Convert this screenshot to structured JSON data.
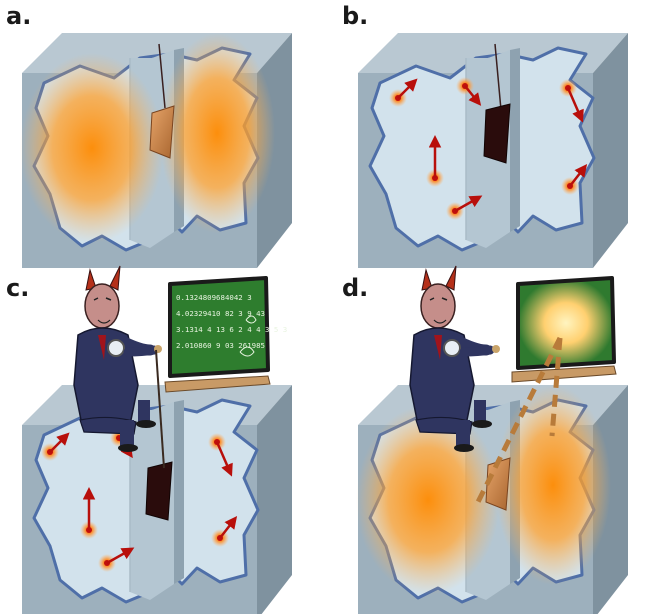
{
  "panels": [
    {
      "label": "a.",
      "content": "warm glow, shutter open"
    },
    {
      "label": "b.",
      "content": "particles, shutter closed"
    },
    {
      "label": "c.",
      "content": "demon measures particles"
    },
    {
      "label": "d.",
      "content": "demon erases board, heat released"
    }
  ],
  "blackboard": {
    "lines": [
      "0.1324809684042 3",
      "4.02329410 82 3 9 43",
      "3.1314 4 13 6 2 4 4 3 5 3",
      "2.010860 9 03 261985"
    ]
  },
  "colors": {
    "box_outer": "#9fb2bf",
    "box_inner": "#cfe0ea",
    "glow": "#ff9a1a",
    "particle": "#c0100c",
    "board": "#2e7d2e",
    "board_frame": "#1a1a1a",
    "shutter": "#3a1010"
  }
}
